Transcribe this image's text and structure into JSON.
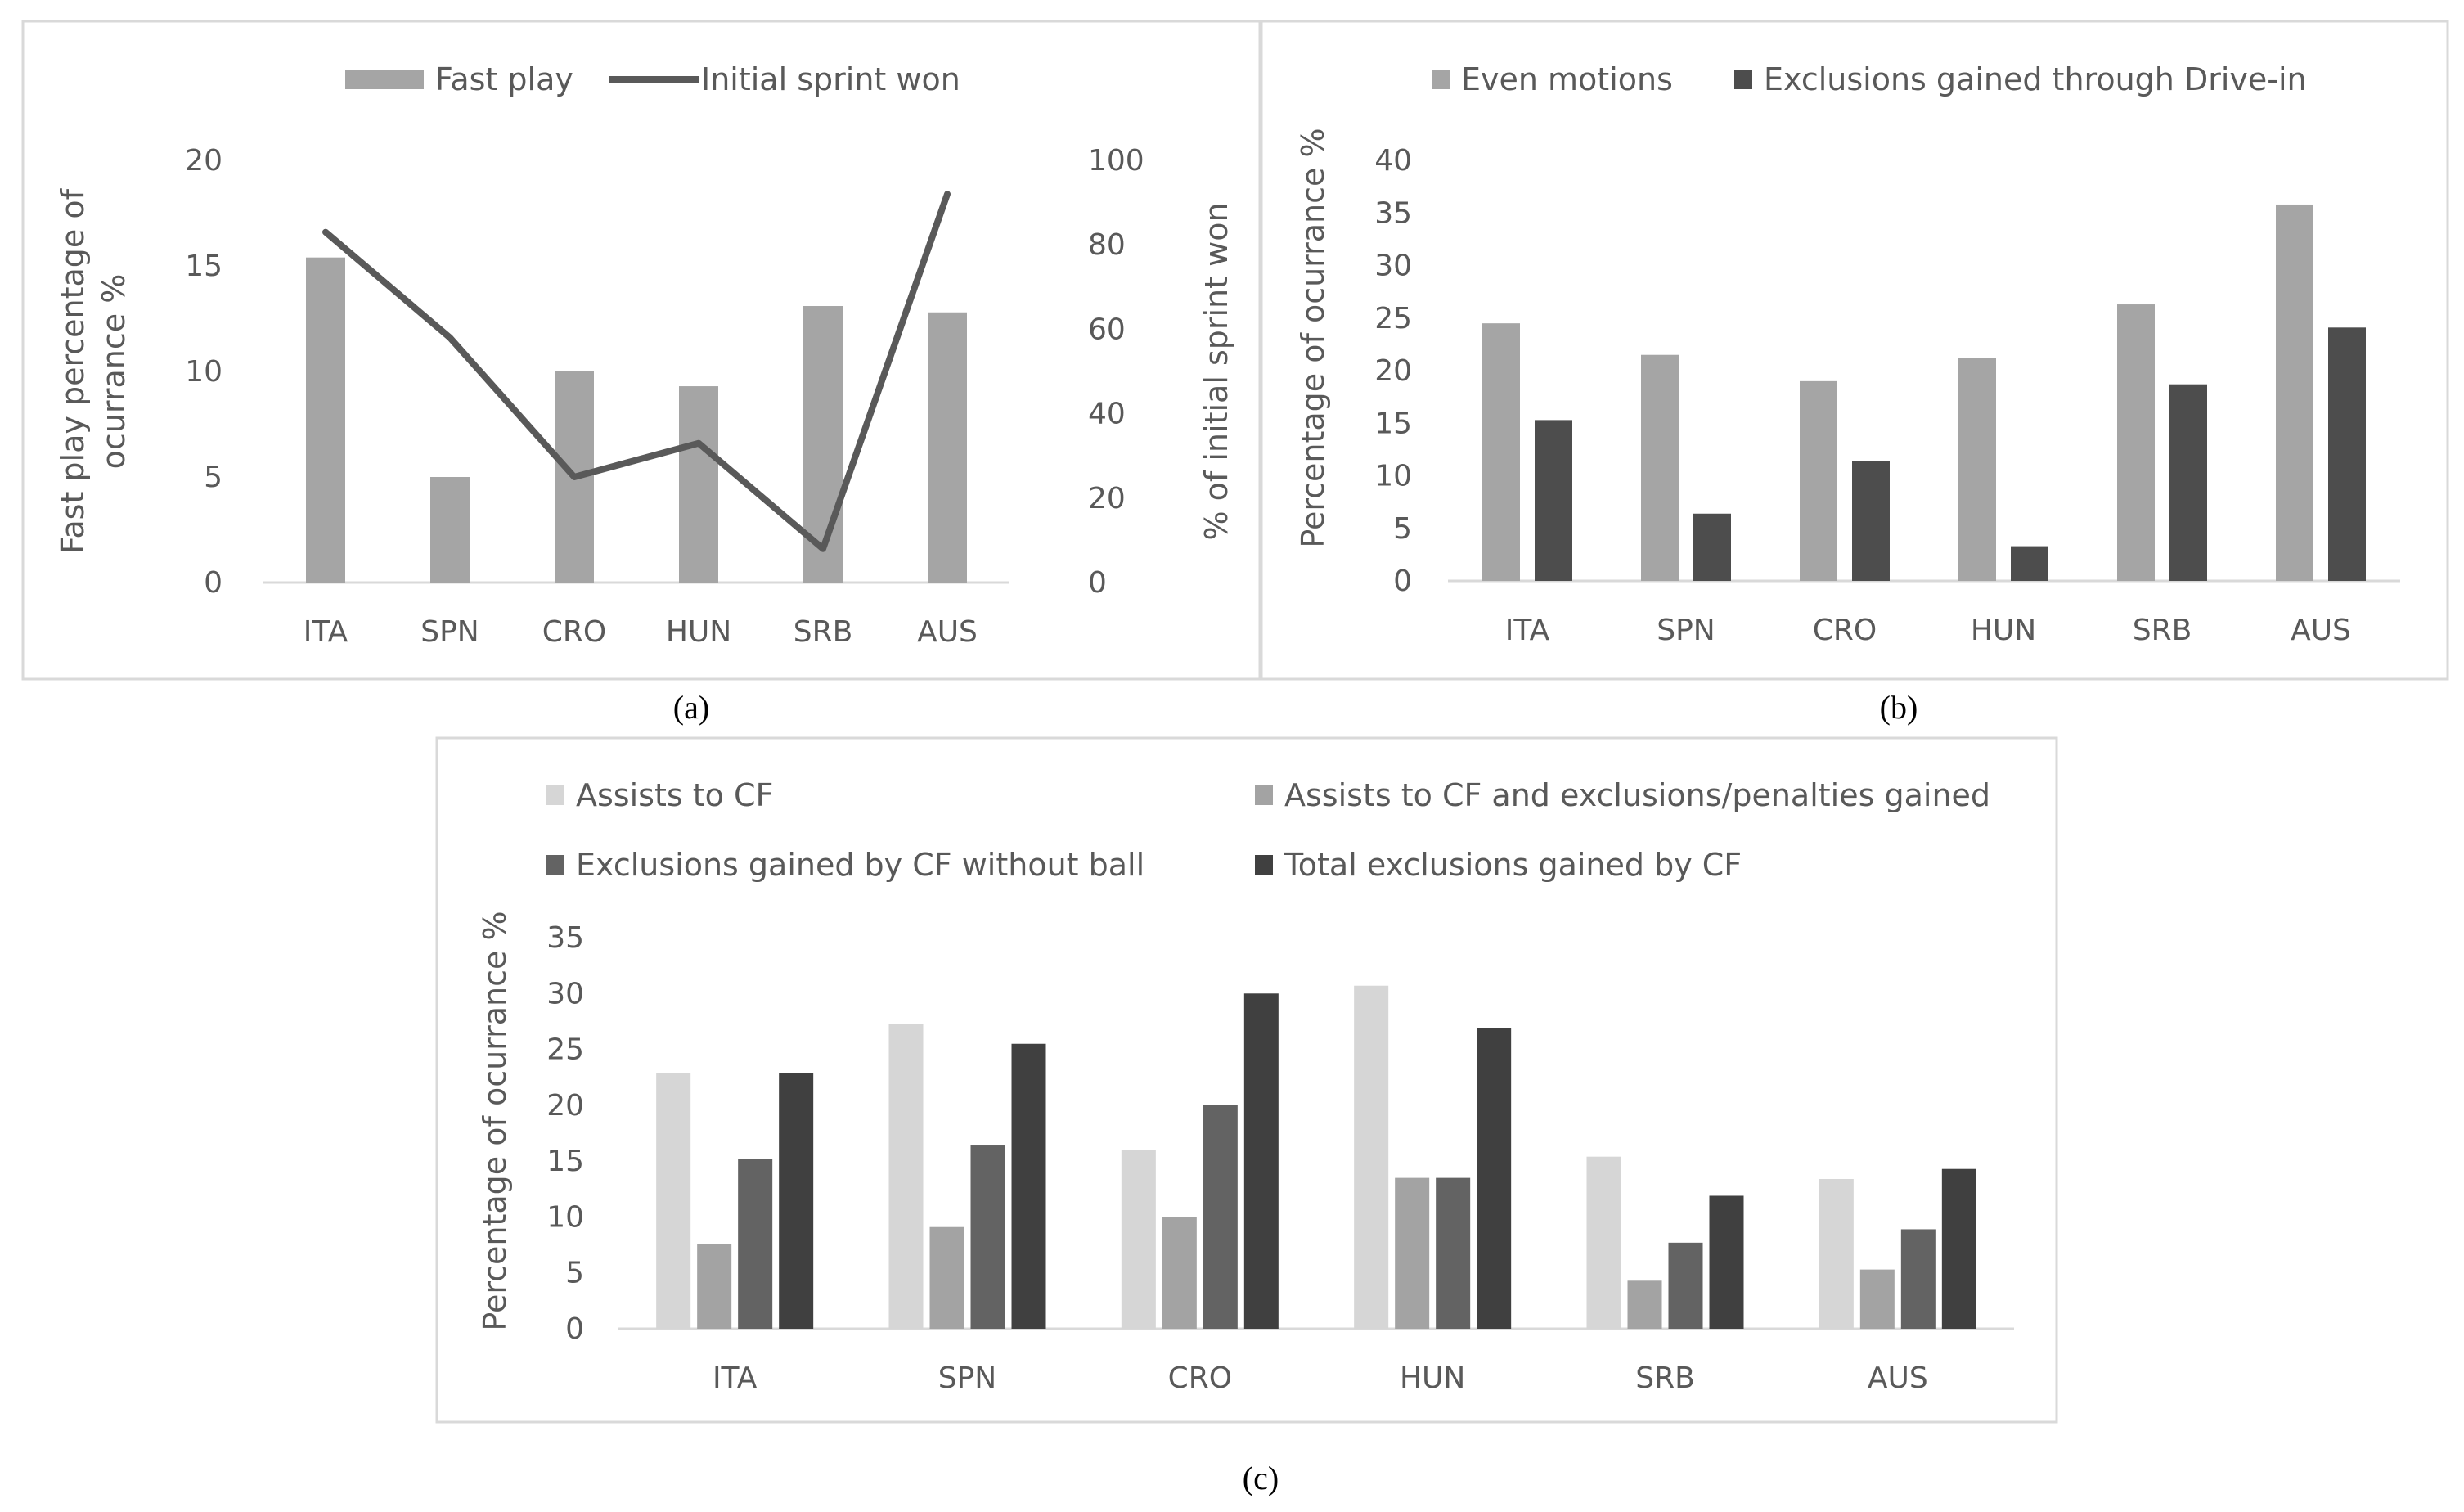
{
  "chart_data": [
    {
      "id": "a",
      "type": "bar",
      "caption": "(a)",
      "categories": [
        "ITA",
        "SPN",
        "CRO",
        "HUN",
        "SRB",
        "AUS"
      ],
      "series": [
        {
          "name": "Fast play",
          "type": "bar",
          "axis": "left",
          "color": "#a5a5a5",
          "values": [
            15.4,
            5.0,
            10.0,
            9.3,
            13.1,
            12.8
          ]
        },
        {
          "name": "Initial sprint won",
          "type": "line",
          "axis": "right",
          "color": "#595959",
          "values": [
            83,
            58,
            25,
            33,
            8,
            92
          ]
        }
      ],
      "ylabel": "Fast play percentage of ocurrance %",
      "y2label": "% of initial sprint won",
      "ylim": [
        0,
        20
      ],
      "yticks": [
        0,
        5,
        10,
        15,
        20
      ],
      "y2lim": [
        0,
        100
      ],
      "y2ticks": [
        0,
        20,
        40,
        60,
        80,
        100
      ],
      "grid": false,
      "legend": "top"
    },
    {
      "id": "b",
      "type": "bar",
      "caption": "(b)",
      "categories": [
        "ITA",
        "SPN",
        "CRO",
        "HUN",
        "SRB",
        "AUS"
      ],
      "series": [
        {
          "name": "Even motions",
          "color": "#a5a5a5",
          "values": [
            24.5,
            21.5,
            19.0,
            21.2,
            26.3,
            35.8
          ]
        },
        {
          "name": "Exclusions gained through Drive-in",
          "color": "#4d4d4d",
          "values": [
            15.3,
            6.4,
            11.4,
            3.3,
            18.7,
            24.1
          ]
        }
      ],
      "ylabel": "Percentage of ocurrance %",
      "ylim": [
        0,
        40
      ],
      "yticks": [
        0,
        5,
        10,
        15,
        20,
        25,
        30,
        35,
        40
      ],
      "grid": false,
      "legend": "top"
    },
    {
      "id": "c",
      "type": "bar",
      "caption": "(c)",
      "categories": [
        "ITA",
        "SPN",
        "CRO",
        "HUN",
        "SRB",
        "AUS"
      ],
      "series": [
        {
          "name": "Assists to CF",
          "color": "#d6d6d6",
          "values": [
            22.9,
            27.3,
            16.0,
            30.7,
            15.4,
            13.4
          ]
        },
        {
          "name": "Assists to CF and exclusions/penalties gained",
          "color": "#a3a3a3",
          "values": [
            7.6,
            9.1,
            10.0,
            13.5,
            4.3,
            5.3
          ]
        },
        {
          "name": "Exclusions gained by CF without ball",
          "color": "#636363",
          "values": [
            15.2,
            16.4,
            20.0,
            13.5,
            7.7,
            8.9
          ]
        },
        {
          "name": "Total exclusions gained by CF",
          "color": "#404040",
          "values": [
            22.9,
            25.5,
            30.0,
            26.9,
            11.9,
            14.3
          ]
        }
      ],
      "ylabel": "Percentage of ocurrance %",
      "ylim": [
        0,
        35
      ],
      "yticks": [
        0,
        5,
        10,
        15,
        20,
        25,
        30,
        35
      ],
      "grid": false,
      "legend": "top"
    }
  ]
}
